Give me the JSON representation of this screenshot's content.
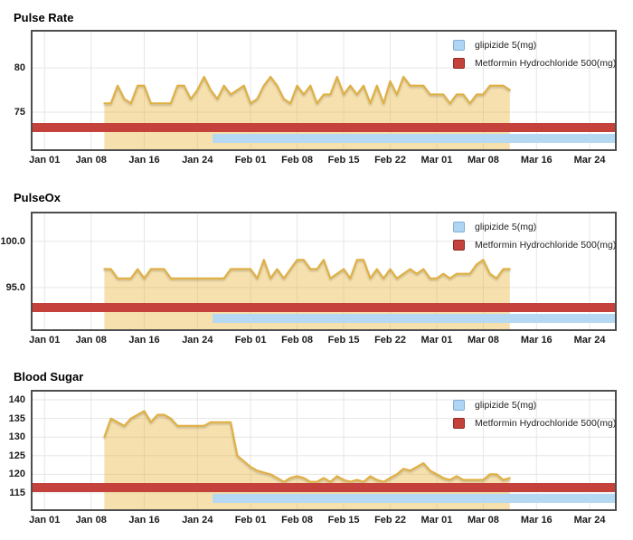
{
  "page": {
    "background": "#ffffff"
  },
  "legend": {
    "items": [
      {
        "label": "glipizide 5(mg)",
        "fill": "#AFD5F3",
        "border": "#7FAFD9"
      },
      {
        "label": "Metformin Hydrochloride 500(mg)",
        "fill": "#C5413B",
        "border": "#8C2B24"
      }
    ]
  },
  "x_axis": {
    "tick_labels": [
      "Jan 01",
      "Jan 08",
      "Jan 16",
      "Jan 24",
      "Feb 01",
      "Feb 08",
      "Feb 15",
      "Feb 22",
      "Mar 01",
      "Mar 08",
      "Mar 16",
      "Mar 24"
    ],
    "tick_days": [
      0,
      7,
      15,
      23,
      31,
      38,
      45,
      52,
      59,
      66,
      74,
      82
    ],
    "domain": "Dec 30 to Mar 29 (day -1.8 to day 85.8 relative to Jan 01)"
  },
  "colors": {
    "series_fill": "rgba(231,181,61,0.42)",
    "series_line": "#DFAE3E",
    "metformin_band": "#C5413B",
    "glipizide_band": "#B5D8F3",
    "gridline": "#E6E6E6",
    "plot_border": "#4E4E4E"
  },
  "chart_data": [
    {
      "type": "area",
      "title": "Pulse Rate",
      "grid": true,
      "legend_position": "top-right",
      "ylim": [
        70.8,
        84.1
      ],
      "y_ticks": [
        {
          "label": "80",
          "value": 80
        },
        {
          "label": "75",
          "value": 75
        }
      ],
      "series": [
        {
          "name": "Pulse Rate",
          "start_day": 9,
          "start_date": "Jan 10",
          "end_date": "Mar 12",
          "step_days": 1,
          "values": [
            76,
            76,
            78,
            76.5,
            76,
            78,
            78,
            76,
            76,
            76,
            76,
            78,
            78,
            76.5,
            77.5,
            79,
            77.5,
            76.5,
            78,
            77,
            77.5,
            78,
            76,
            76.5,
            78,
            79,
            78,
            76.5,
            76,
            78,
            77,
            78,
            76,
            77,
            77,
            79,
            77,
            78,
            77,
            78,
            76,
            78,
            76,
            78.5,
            77,
            79,
            78,
            78,
            78,
            77,
            77,
            77,
            76,
            77,
            77,
            76,
            77,
            77,
            78,
            78,
            78,
            77.5
          ]
        }
      ],
      "overlays": [
        {
          "name": "Metformin Hydrochloride 500(mg)",
          "type": "medication-band",
          "color": "#C5413B",
          "start_day": null,
          "end_day": null
        },
        {
          "name": "glipizide 5(mg)",
          "type": "medication-band",
          "color": "#B5D8F3",
          "start_day": 25.3,
          "end_day": null,
          "start_date": "Jan 26"
        }
      ]
    },
    {
      "type": "area",
      "title": "PulseOx",
      "grid": true,
      "legend_position": "top-right",
      "ylim": [
        90.5,
        103.0
      ],
      "y_ticks": [
        {
          "label": "100.0",
          "value": 100
        },
        {
          "label": "95.0",
          "value": 95
        }
      ],
      "series": [
        {
          "name": "PulseOx",
          "start_day": 9,
          "start_date": "Jan 10",
          "end_date": "Mar 12",
          "step_days": 1,
          "values": [
            97,
            97,
            96,
            96,
            96,
            97,
            96,
            97,
            97,
            97,
            96,
            96,
            96,
            96,
            96,
            96,
            96,
            96,
            96,
            97,
            97,
            97,
            97,
            96,
            98,
            96,
            97,
            96,
            97,
            98,
            98,
            97,
            97,
            98,
            96,
            96.5,
            97,
            96,
            98,
            98,
            96,
            97,
            96,
            97,
            96,
            96.5,
            97,
            96.5,
            97,
            96,
            96,
            96.5,
            96,
            96.5,
            96.5,
            96.5,
            97.5,
            98,
            96.5,
            96,
            97,
            97
          ]
        }
      ],
      "overlays": [
        {
          "name": "Metformin Hydrochloride 500(mg)",
          "type": "medication-band",
          "color": "#C5413B",
          "start_day": null,
          "end_day": null
        },
        {
          "name": "glipizide 5(mg)",
          "type": "medication-band",
          "color": "#B5D8F3",
          "start_day": 25.3,
          "end_day": null,
          "start_date": "Jan 26"
        }
      ]
    },
    {
      "type": "area",
      "title": "Blood Sugar",
      "grid": true,
      "legend_position": "top-right",
      "ylim": [
        110.6,
        142.2
      ],
      "y_ticks": [
        {
          "label": "140",
          "value": 140
        },
        {
          "label": "135",
          "value": 135
        },
        {
          "label": "130",
          "value": 130
        },
        {
          "label": "125",
          "value": 125
        },
        {
          "label": "120",
          "value": 120
        },
        {
          "label": "115",
          "value": 115
        }
      ],
      "series": [
        {
          "name": "Blood Sugar",
          "start_day": 9,
          "start_date": "Jan 10",
          "end_date": "Mar 12",
          "step_days": 1,
          "values": [
            130,
            135,
            134,
            133,
            135,
            136,
            137,
            134,
            136,
            136,
            135,
            133,
            133,
            133,
            133,
            133,
            134,
            134,
            134,
            134,
            125,
            123.5,
            122,
            121,
            120.5,
            120,
            119,
            118,
            119,
            119.5,
            119,
            118,
            118,
            119,
            118,
            119.5,
            118.5,
            118,
            118.5,
            118,
            119.5,
            118.5,
            118,
            119,
            120,
            121.5,
            121,
            122,
            123,
            121,
            120,
            119,
            118.5,
            119.5,
            118.5,
            118.5,
            118.5,
            118.5,
            120,
            120,
            118.5,
            119
          ]
        }
      ],
      "overlays": [
        {
          "name": "Metformin Hydrochloride 500(mg)",
          "type": "medication-band",
          "color": "#C5413B",
          "start_day": null,
          "end_day": null
        },
        {
          "name": "glipizide 5(mg)",
          "type": "medication-band",
          "color": "#B5D8F3",
          "start_day": 25.3,
          "end_day": null,
          "start_date": "Jan 26"
        }
      ]
    }
  ]
}
